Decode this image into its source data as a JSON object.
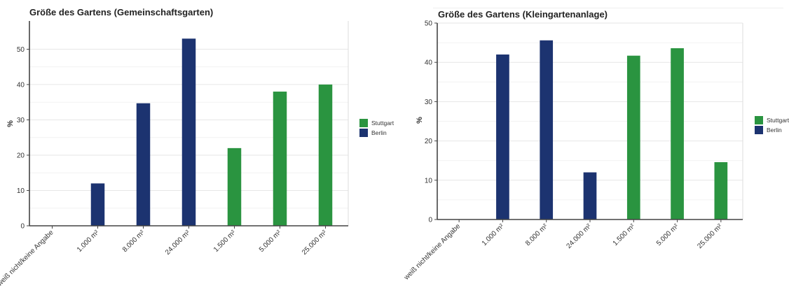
{
  "chart_data": [
    {
      "type": "bar",
      "title": "Größe des Gartens (Gemeinschaftsgarten)",
      "ylabel": "%",
      "xlabel": "",
      "ylim": [
        0,
        58
      ],
      "yticks": [
        0,
        10,
        20,
        30,
        40,
        50
      ],
      "grid": true,
      "legend_position": "right",
      "categories": [
        "weiß nicht/keine Angabe",
        "1.000 m²",
        "8.000 m²",
        "24.000 m²",
        "1.500 m²",
        "5.000 m²",
        "25.000 m²"
      ],
      "series": [
        {
          "name": "Stuttgart",
          "color": "#2a9440",
          "values": [
            null,
            null,
            null,
            null,
            22,
            38,
            40
          ]
        },
        {
          "name": "Berlin",
          "color": "#1c3370",
          "values": [
            null,
            12,
            34.7,
            53,
            null,
            null,
            null
          ]
        }
      ]
    },
    {
      "type": "bar",
      "title": "Größe des Gartens (Kleingartenanlage)",
      "ylabel": "%",
      "xlabel": "",
      "ylim": [
        0,
        50
      ],
      "yticks": [
        0,
        10,
        20,
        30,
        40,
        50
      ],
      "grid": true,
      "legend_position": "right",
      "categories": [
        "weiß nicht/keine Angabe",
        "1.000 m²",
        "8.000 m²",
        "24.000 m²",
        "1.500 m²",
        "5.000 m²",
        "25.000 m²"
      ],
      "series": [
        {
          "name": "Stuttgart",
          "color": "#2a9440",
          "values": [
            null,
            null,
            null,
            null,
            41.7,
            43.6,
            14.6
          ]
        },
        {
          "name": "Berlin",
          "color": "#1c3370",
          "values": [
            null,
            42,
            45.6,
            12,
            null,
            null,
            null
          ]
        }
      ]
    }
  ]
}
